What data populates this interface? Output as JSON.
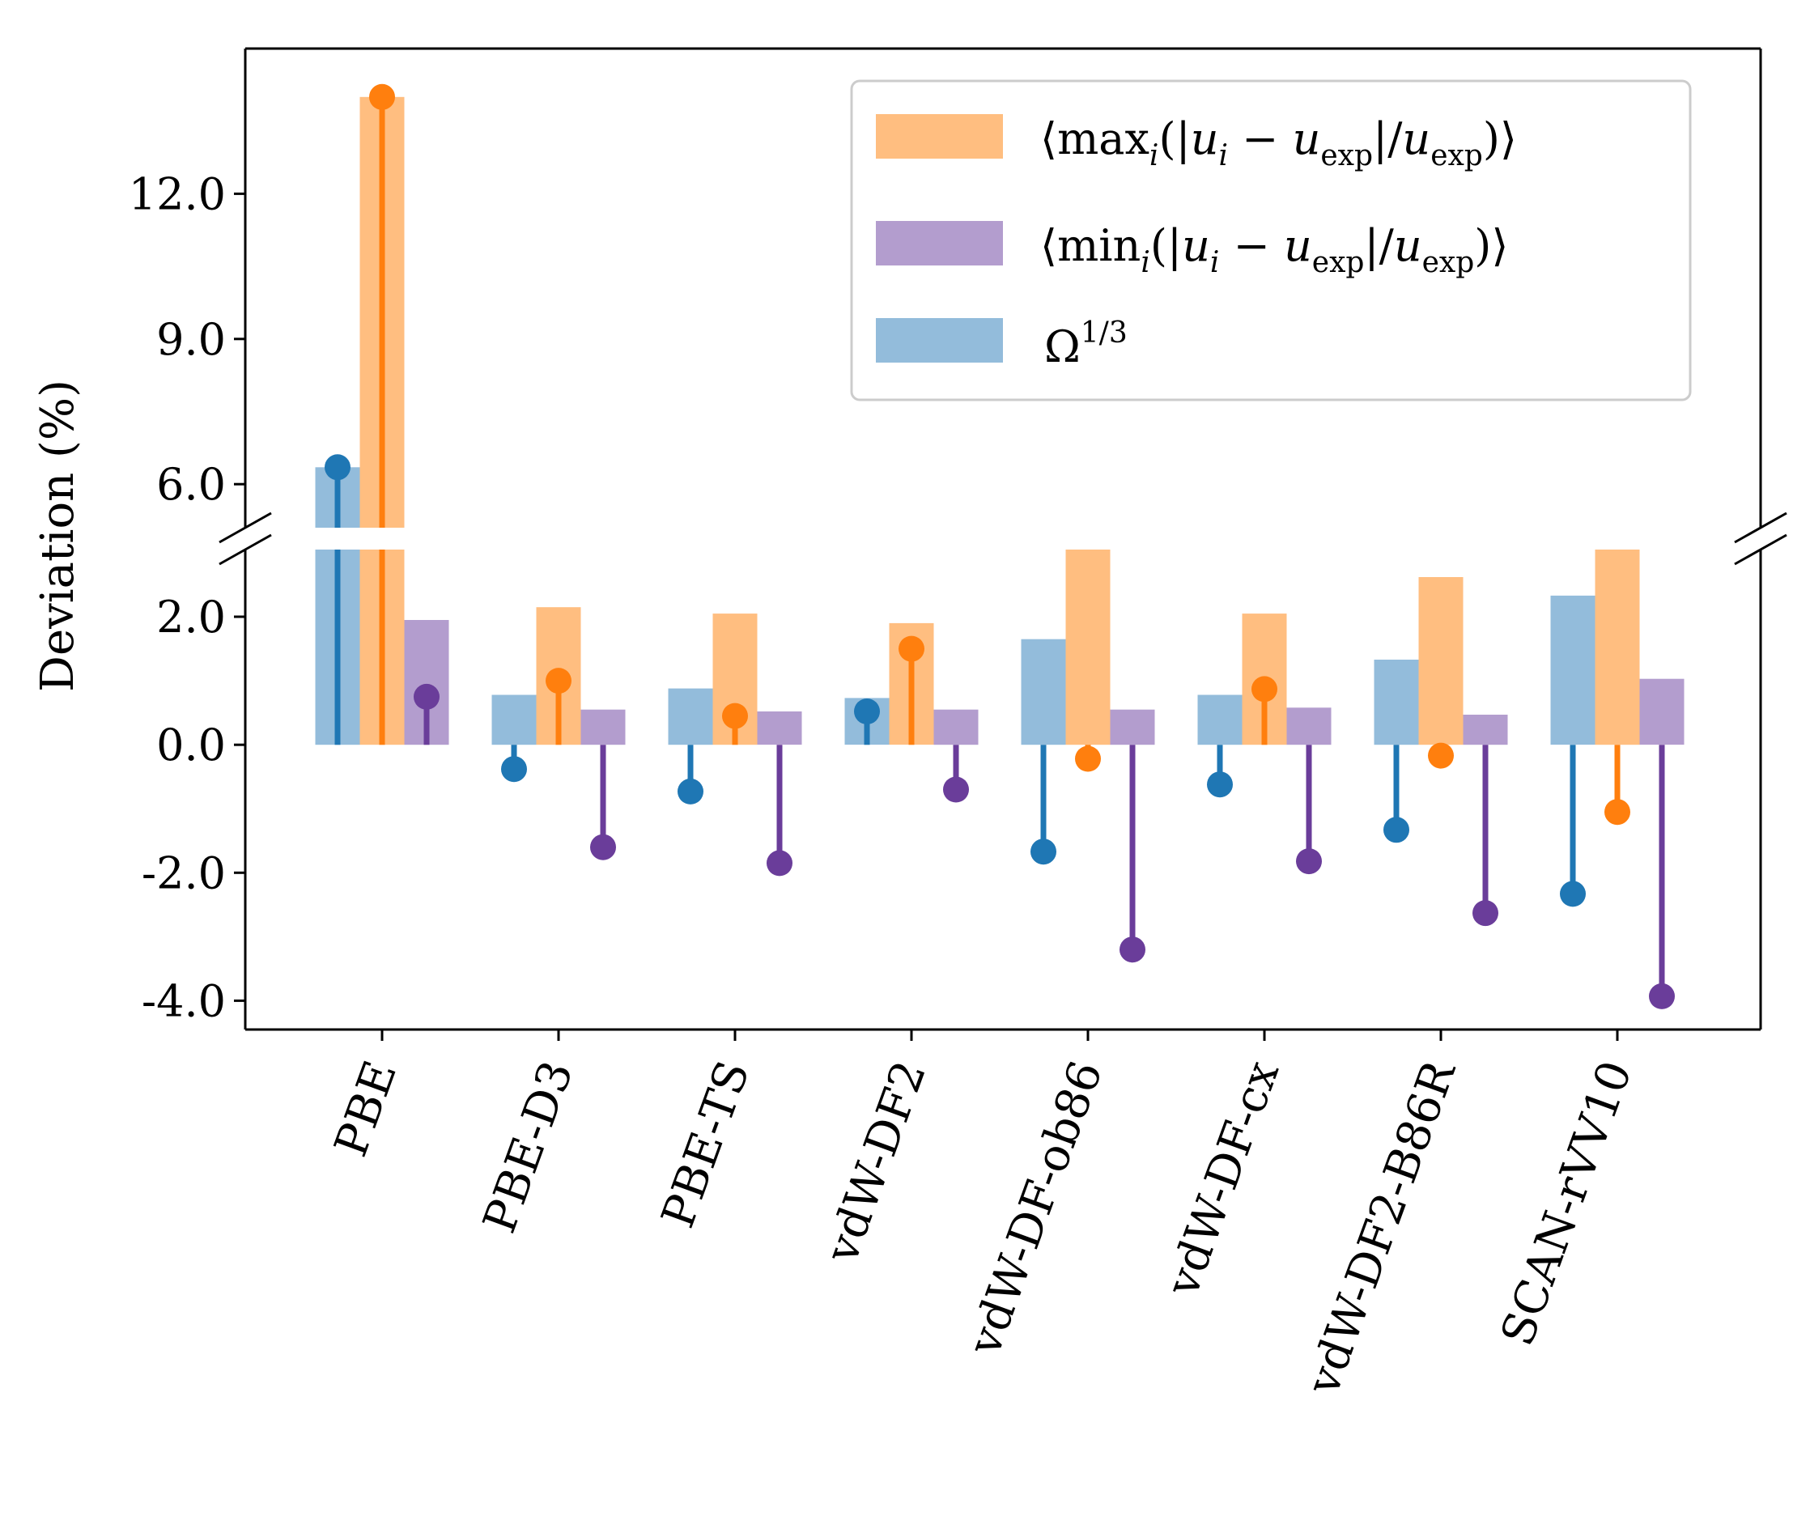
{
  "chart_data": {
    "type": "bar",
    "ylabel": "Deviation (%)",
    "categories": [
      "PBE",
      "PBE-D3",
      "PBE-TS",
      "vdW-DF2",
      "vdW-DF-ob86",
      "vdW-DF-cx",
      "vdW-DF2-B86R",
      "SCAN-rVV10"
    ],
    "y_ticks": [
      "-4.0",
      "-2.0",
      "0.0",
      "2.0",
      "6.0",
      "9.0",
      "12.0"
    ],
    "axis_break": {
      "lower_range": [
        -4.45,
        3.05
      ],
      "upper_range": [
        5.1,
        15.0
      ]
    },
    "legend": {
      "position": "top-right",
      "entries": [
        {
          "text_pre": "⟨max",
          "sub": "i",
          "text_mid": "(|",
          "u1": "u",
          "u1_sub": "i",
          "op": " − ",
          "u2": "u",
          "u2_sub": "exp",
          "bar": "|/",
          "u3": "u",
          "u3_sub": "exp",
          "text_post": ")⟩"
        },
        {
          "text_pre": "⟨min",
          "sub": "i",
          "text_mid": "(|",
          "u1": "u",
          "u1_sub": "i",
          "op": " − ",
          "u2": "u",
          "u2_sub": "exp",
          "bar": "|/",
          "u3": "u",
          "u3_sub": "exp",
          "text_post": ")⟩"
        },
        {
          "text_pre": "Ω",
          "sup": "1/3"
        }
      ]
    },
    "series": [
      {
        "name": "Ω^1/3",
        "bar_color": "#93bcdb",
        "stem_color": "#1f77b4",
        "bar_values": [
          6.35,
          0.78,
          0.88,
          0.73,
          1.65,
          0.78,
          1.33,
          2.33
        ],
        "stem_values": [
          6.35,
          -0.38,
          -0.73,
          0.52,
          -1.67,
          -0.62,
          -1.33,
          -2.33
        ]
      },
      {
        "name": "⟨max_i(|u_i − u_exp|/u_exp)⟩",
        "bar_color": "#ffbe80",
        "stem_color": "#ff7f0e",
        "bar_values": [
          14.0,
          2.15,
          2.05,
          1.9,
          3.05,
          2.05,
          2.62,
          3.05
        ],
        "stem_values": [
          14.0,
          1.0,
          0.45,
          1.5,
          -0.22,
          0.87,
          -0.17,
          -1.05
        ]
      },
      {
        "name": "⟨min_i(|u_i − u_exp|/u_exp)⟩",
        "bar_color": "#b39dce",
        "stem_color": "#6a3d9a",
        "bar_values": [
          1.95,
          0.55,
          0.52,
          0.55,
          0.55,
          0.58,
          0.47,
          1.03
        ],
        "stem_values": [
          0.75,
          -1.6,
          -1.85,
          -0.7,
          -3.2,
          -1.82,
          -2.63,
          -3.93
        ]
      }
    ]
  }
}
